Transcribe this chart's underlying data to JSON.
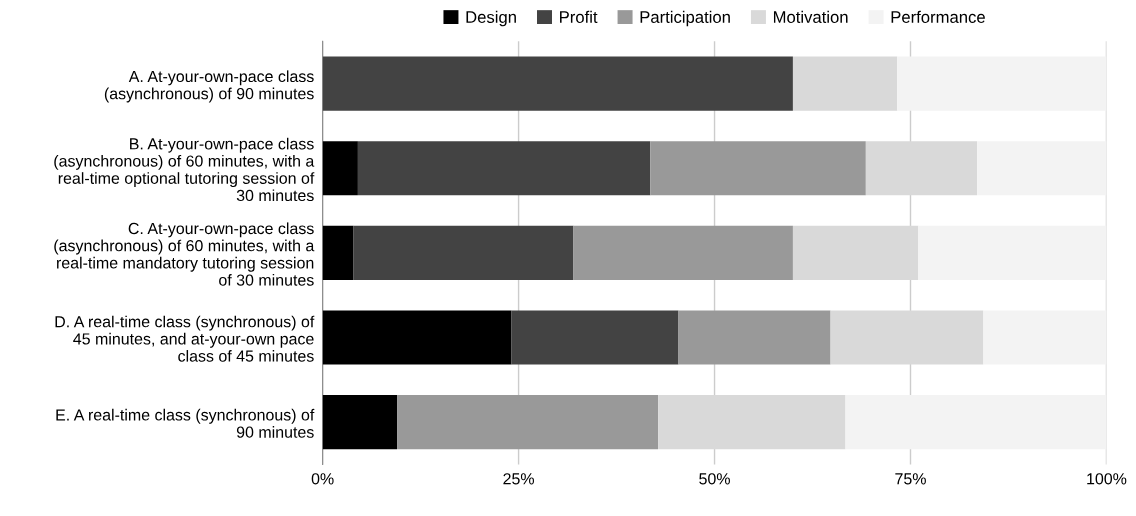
{
  "chart_data": {
    "type": "bar",
    "orientation": "horizontal",
    "stacked": true,
    "categories": [
      "A. At-your-own-pace class\n(asynchronous) of 90 minutes",
      "B. At-your-own-pace class\n(asynchronous) of 60 minutes, with a\nreal-time optional tutoring session of\n30 minutes",
      "C. At-your-own-pace class\n(asynchronous) of 60 minutes, with a\nreal-time mandatory tutoring session\nof 30 minutes",
      "D. A real-time class (synchronous) of\n45 minutes, and at-your-own pace\nclass of 45 minutes",
      "E. A real-time class (synchronous) of\n90 minutes"
    ],
    "series": [
      {
        "name": "Design",
        "color": "#000000",
        "values": [
          0,
          4.5,
          3.9,
          24.1,
          9.5
        ]
      },
      {
        "name": "Profit",
        "color": "#434343",
        "values": [
          60.0,
          37.3,
          28.1,
          21.3,
          0
        ]
      },
      {
        "name": "Participation",
        "color": "#999999",
        "values": [
          0,
          27.5,
          28.0,
          19.4,
          33.3
        ]
      },
      {
        "name": "Motivation",
        "color": "#d9d9d9",
        "values": [
          13.3,
          14.2,
          16.0,
          19.5,
          23.9
        ]
      },
      {
        "name": "Performance",
        "color": "#f3f3f3",
        "values": [
          26.7,
          16.5,
          24.0,
          15.7,
          33.3
        ]
      }
    ],
    "xlim": [
      0,
      100
    ],
    "xticks": [
      {
        "value": 0,
        "label": "0%"
      },
      {
        "value": 25,
        "label": "25%"
      },
      {
        "value": 50,
        "label": "50%"
      },
      {
        "value": 75,
        "label": "75%"
      },
      {
        "value": 100,
        "label": "100%"
      }
    ],
    "grid": "x",
    "legend": "top"
  }
}
